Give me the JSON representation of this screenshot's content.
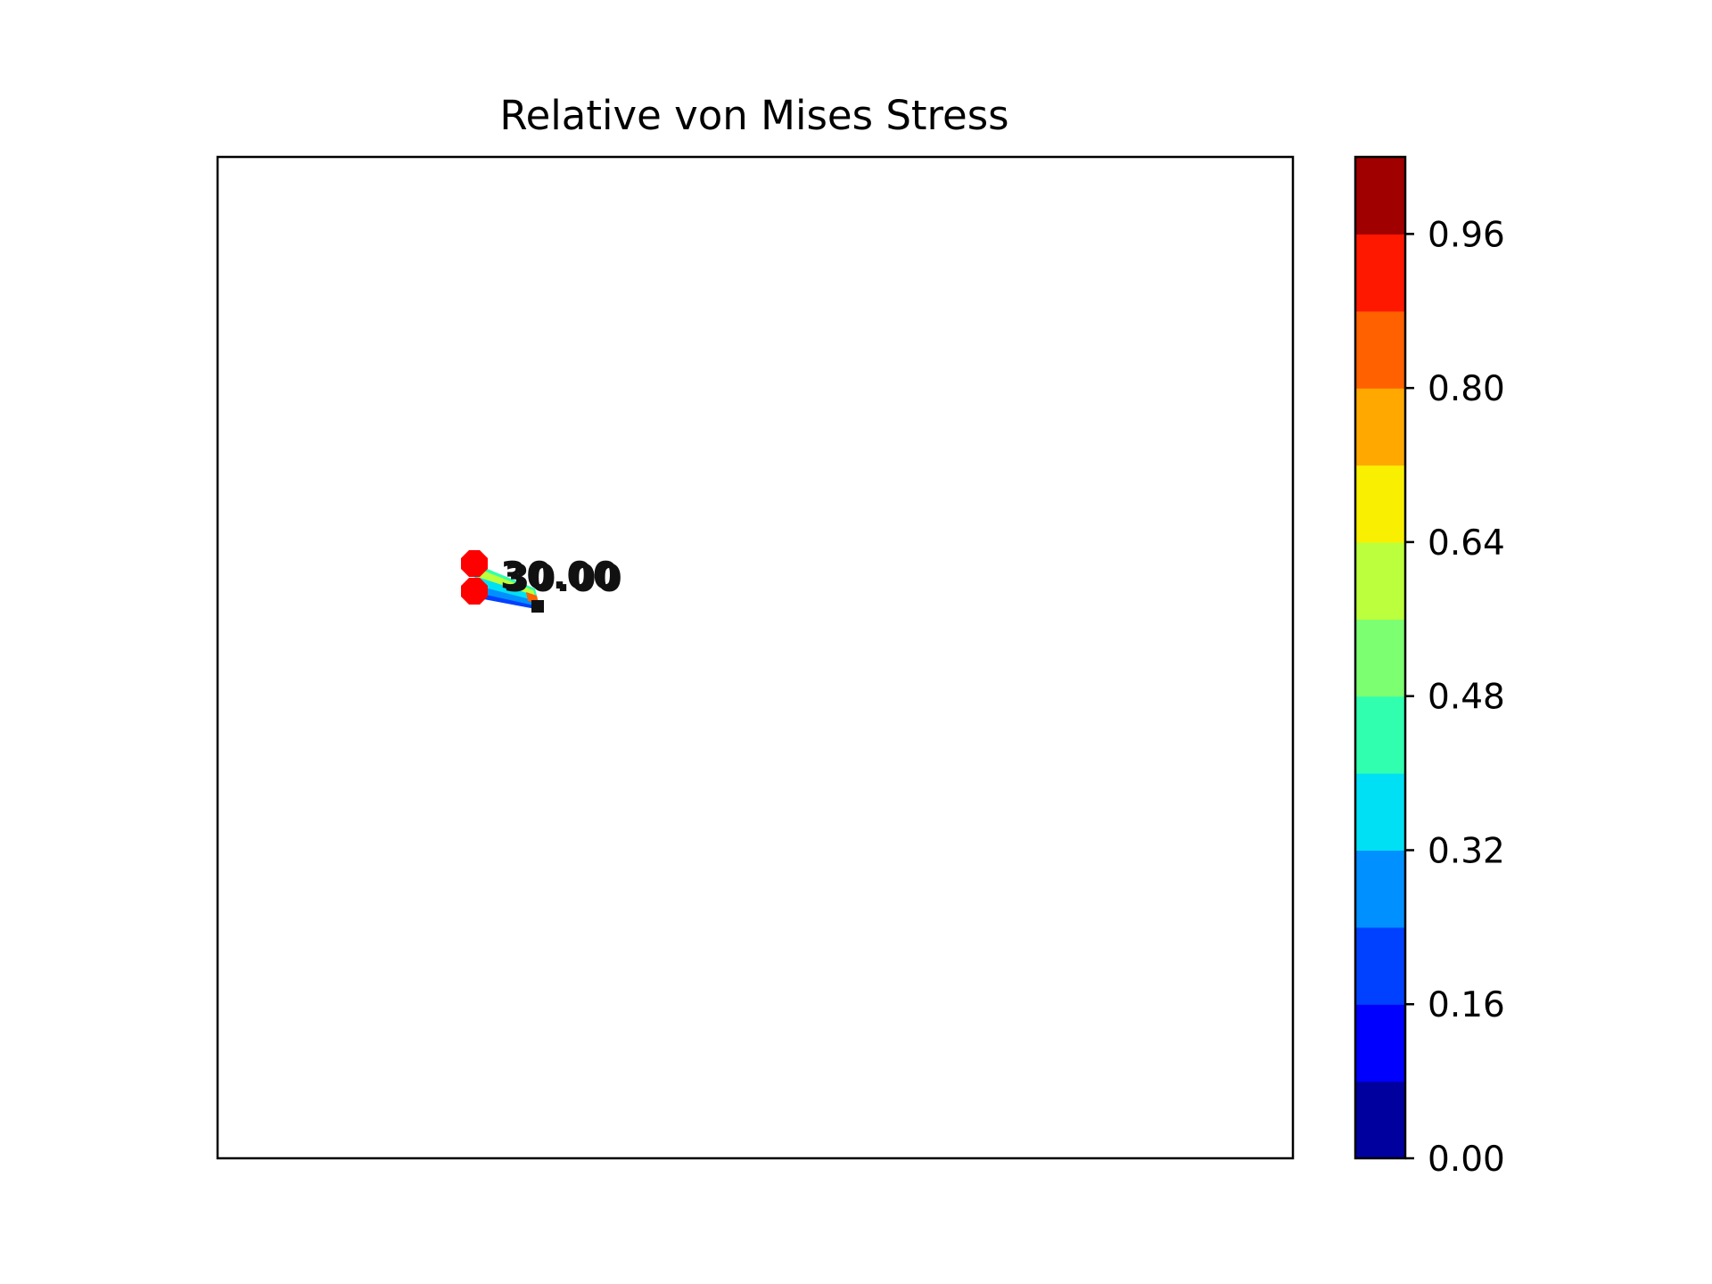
{
  "chart_data": [
    {
      "type": "contour",
      "title": "Relative von Mises Stress",
      "xlabel": "",
      "ylabel": "",
      "axes_ticks_visible": false,
      "grid": false,
      "supports": [
        {
          "id": "support-top",
          "color": "#ff0000"
        },
        {
          "id": "support-bottom",
          "color": "#ff0000"
        }
      ],
      "load_point": {
        "color": "#111111"
      },
      "annotations": [
        "30.00",
        "30.00"
      ]
    },
    {
      "type": "colorbar",
      "ticks": [
        "0.00",
        "0.16",
        "0.32",
        "0.48",
        "0.64",
        "0.80",
        "0.96"
      ],
      "tick_values": [
        0.0,
        0.16,
        0.32,
        0.48,
        0.64,
        0.8,
        0.96
      ],
      "range": [
        0.0,
        1.04
      ],
      "levels": [
        {
          "from": 0.0,
          "to": 0.08,
          "color": "#00009f"
        },
        {
          "from": 0.08,
          "to": 0.16,
          "color": "#0000ff"
        },
        {
          "from": 0.16,
          "to": 0.24,
          "color": "#0040ff"
        },
        {
          "from": 0.24,
          "to": 0.32,
          "color": "#0090ff"
        },
        {
          "from": 0.32,
          "to": 0.4,
          "color": "#00e0f5"
        },
        {
          "from": 0.4,
          "to": 0.48,
          "color": "#30ffb0"
        },
        {
          "from": 0.48,
          "to": 0.56,
          "color": "#7cff70"
        },
        {
          "from": 0.56,
          "to": 0.64,
          "color": "#bcff3c"
        },
        {
          "from": 0.64,
          "to": 0.72,
          "color": "#f8f000"
        },
        {
          "from": 0.72,
          "to": 0.8,
          "color": "#ffa800"
        },
        {
          "from": 0.8,
          "to": 0.88,
          "color": "#ff6000"
        },
        {
          "from": 0.88,
          "to": 0.96,
          "color": "#ff1800"
        },
        {
          "from": 0.96,
          "to": 1.04,
          "color": "#a00000"
        }
      ]
    }
  ]
}
